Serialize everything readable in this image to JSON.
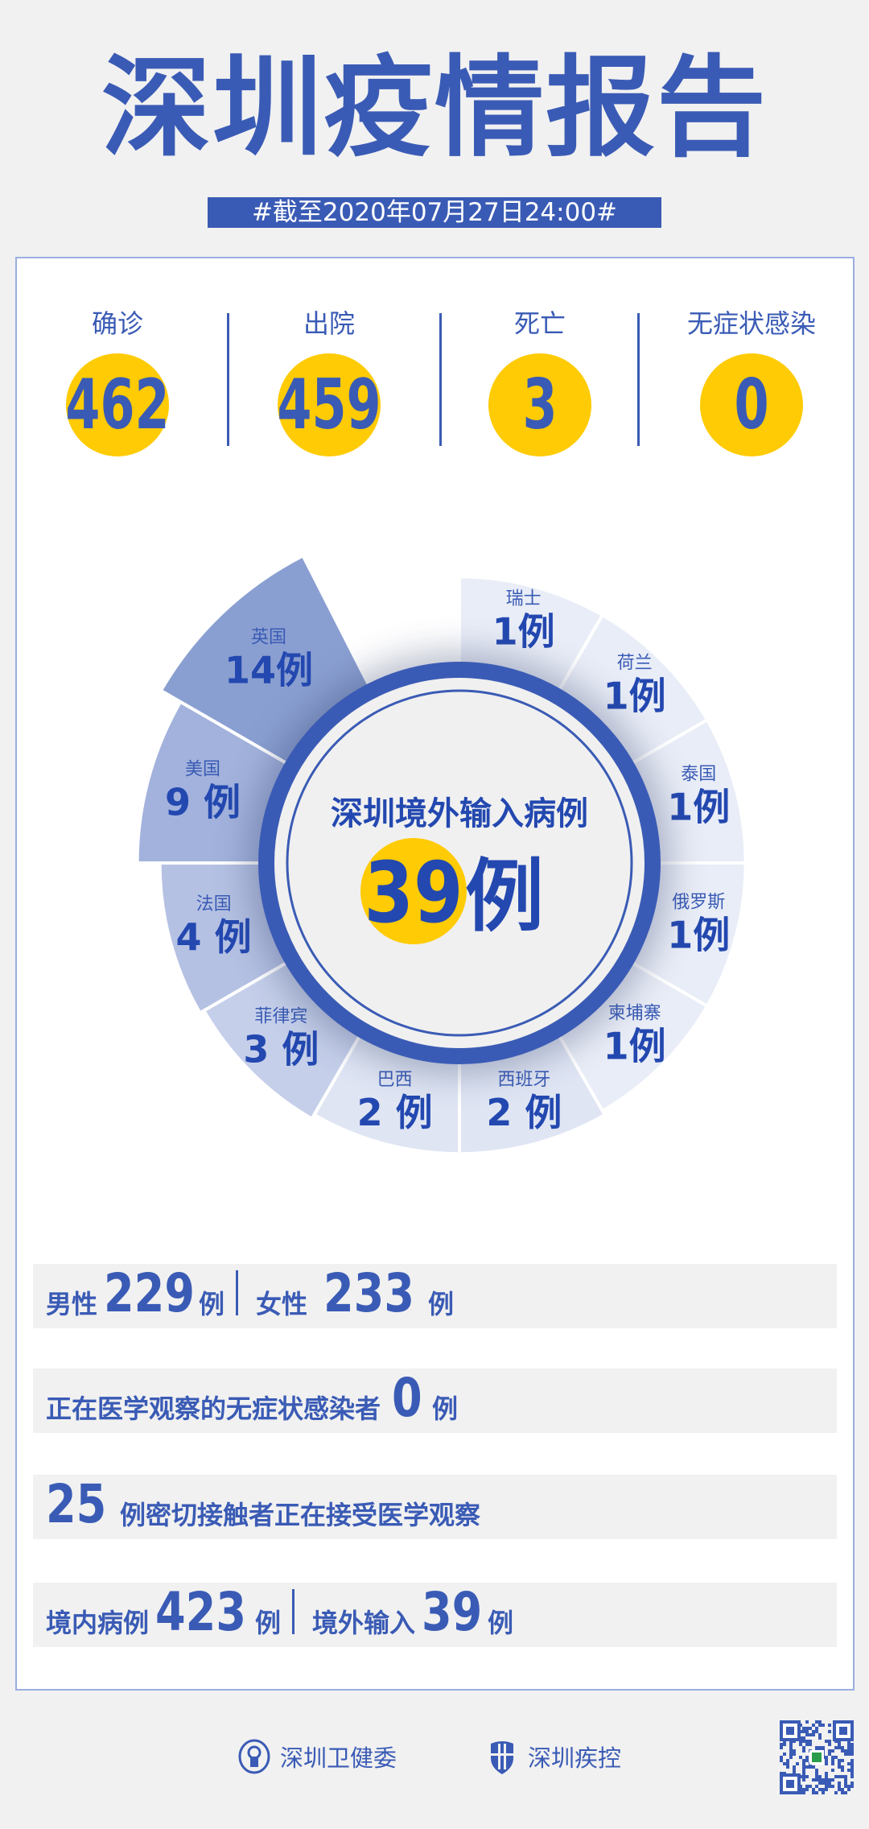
{
  "header": {
    "title": "深圳疫情报告",
    "date": "#截至2020年07月27日24:00#"
  },
  "stats": [
    {
      "label": "确诊",
      "value": "462"
    },
    {
      "label": "出院",
      "value": "459"
    },
    {
      "label": "死亡",
      "value": "3"
    },
    {
      "label": "无症状感染",
      "value": "0"
    }
  ],
  "colors": {
    "primary": "#3a5bb5",
    "accent": "#ffcb05",
    "background": "#f1f1f1"
  },
  "chart_data": {
    "type": "pie",
    "title": "深圳境外输入病例",
    "total": "39",
    "unit": "例",
    "categories": [
      "瑞士",
      "荷兰",
      "泰国",
      "俄罗斯",
      "柬埔寨",
      "西班牙",
      "巴西",
      "菲律宾",
      "法国",
      "美国",
      "英国"
    ],
    "values": [
      1,
      1,
      1,
      1,
      1,
      2,
      2,
      3,
      4,
      9,
      14
    ],
    "labels": [
      "1例",
      "1例",
      "1例",
      "1例",
      "1例",
      "2 例",
      "2 例",
      "3 例",
      "4 例",
      "9 例",
      "14例"
    ],
    "colors": [
      "#e9edf7",
      "#e9edf7",
      "#e9edf7",
      "#e9edf7",
      "#e9edf7",
      "#dfe5f3",
      "#dfe5f3",
      "#c5cfea",
      "#b5c1e3",
      "#a2b2dc",
      "#8a9fd1"
    ]
  },
  "summary": {
    "male_label": "男性",
    "male": "229",
    "female_label": "女性",
    "female": "233",
    "unit": "例",
    "asym_label": "正在医学观察的无症状感染者",
    "asym": "0",
    "contacts": "25",
    "contacts_label": "例密切接触者正在接受医学观察",
    "local_label": "境内病例",
    "local": "423",
    "imported_label": "境外输入",
    "imported": "39"
  },
  "footer": {
    "org1": "深圳卫健委",
    "org2": "深圳疾控"
  }
}
